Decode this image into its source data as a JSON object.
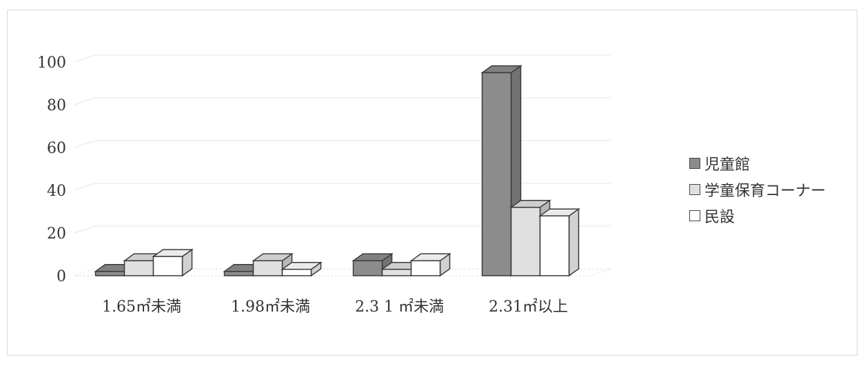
{
  "chart_data": {
    "type": "bar",
    "categories": [
      "1.65㎡未満",
      "1.98㎡未満",
      "2.3 1 ㎡未満",
      "2.31㎡以上"
    ],
    "series": [
      {
        "name": "児童館",
        "values": [
          2,
          2,
          7,
          95
        ],
        "color": "#8c8c8c"
      },
      {
        "name": "学童保育コーナー",
        "values": [
          7,
          7,
          3,
          32
        ],
        "color": "#e0e0e0"
      },
      {
        "name": "民設",
        "values": [
          9,
          3,
          7,
          28
        ],
        "color": "#ffffff"
      }
    ],
    "y_ticks": [
      "0",
      "20",
      "40",
      "60",
      "80",
      "100"
    ],
    "ylim": [
      0,
      100
    ],
    "grid": true,
    "legend_position": "right",
    "three_d": true
  }
}
